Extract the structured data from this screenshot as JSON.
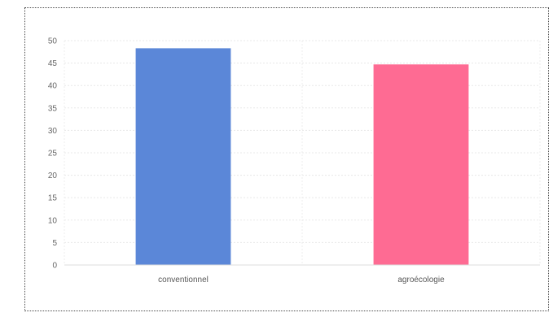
{
  "chart_data": {
    "type": "bar",
    "categories": [
      "conventionnel",
      "agroécologie"
    ],
    "values": [
      48.3,
      44.7
    ],
    "colors": [
      "#5b87d8",
      "#fe6b93"
    ],
    "title": "",
    "xlabel": "",
    "ylabel": "",
    "ylim": [
      0,
      50
    ],
    "yticks": [
      "0",
      "5",
      "10",
      "15",
      "20",
      "25",
      "30",
      "35",
      "40",
      "45",
      "50"
    ],
    "grid": true,
    "legend": "none"
  }
}
